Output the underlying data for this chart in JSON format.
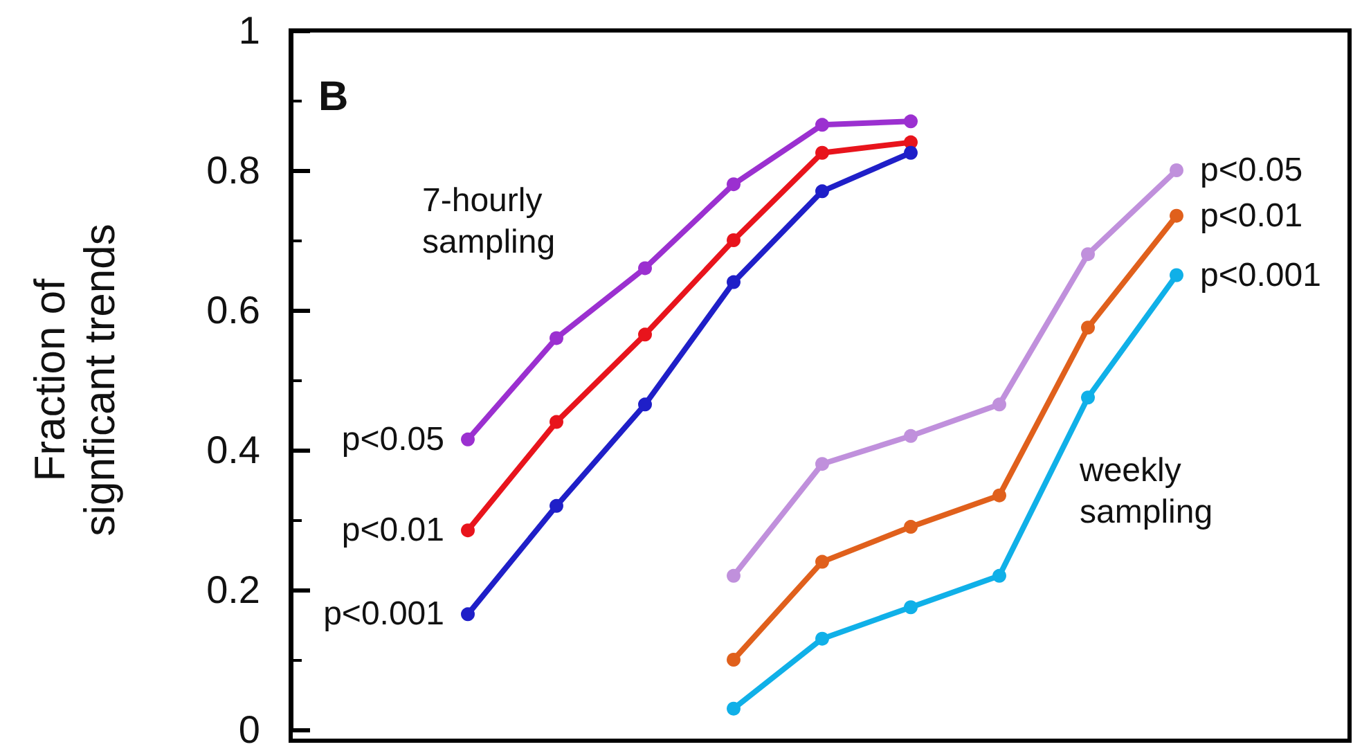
{
  "chart_data": {
    "type": "line",
    "ylabel": "Fraction of\nsignficant trends",
    "categories": [
      null,
      null,
      null,
      null,
      null,
      null,
      null,
      null,
      null
    ],
    "ylim": [
      0,
      1
    ],
    "yticks": [
      0,
      0.2,
      0.4,
      0.6,
      0.8,
      1
    ],
    "grid": false,
    "legend": false,
    "marker": "circle",
    "annotations": [
      "B",
      "7-hourly\nsampling",
      "weekly\nsampling"
    ],
    "series": [
      {
        "name": "p<0.05",
        "color": "#9b30d0",
        "values": [
          0.415,
          0.56,
          0.66,
          0.78,
          0.865,
          0.87,
          null,
          null,
          null
        ]
      },
      {
        "name": "p<0.01",
        "color": "#e8141c",
        "values": [
          0.285,
          0.44,
          0.565,
          0.7,
          0.825,
          0.84,
          null,
          null,
          null
        ]
      },
      {
        "name": "p<0.001",
        "color": "#1f1fc8",
        "values": [
          0.165,
          0.32,
          0.465,
          0.64,
          0.77,
          0.825,
          null,
          null,
          null
        ]
      },
      {
        "name": "p<0.05",
        "color": "#c090dc",
        "values": [
          null,
          null,
          null,
          0.22,
          0.38,
          0.42,
          0.465,
          0.68,
          0.8
        ]
      },
      {
        "name": "p<0.01",
        "color": "#e0601c",
        "values": [
          null,
          null,
          null,
          0.1,
          0.24,
          0.29,
          0.335,
          0.575,
          0.735
        ]
      },
      {
        "name": "p<0.001",
        "color": "#10b0e8",
        "values": [
          null,
          null,
          null,
          0.03,
          0.13,
          0.175,
          0.22,
          0.475,
          0.65
        ]
      }
    ]
  }
}
